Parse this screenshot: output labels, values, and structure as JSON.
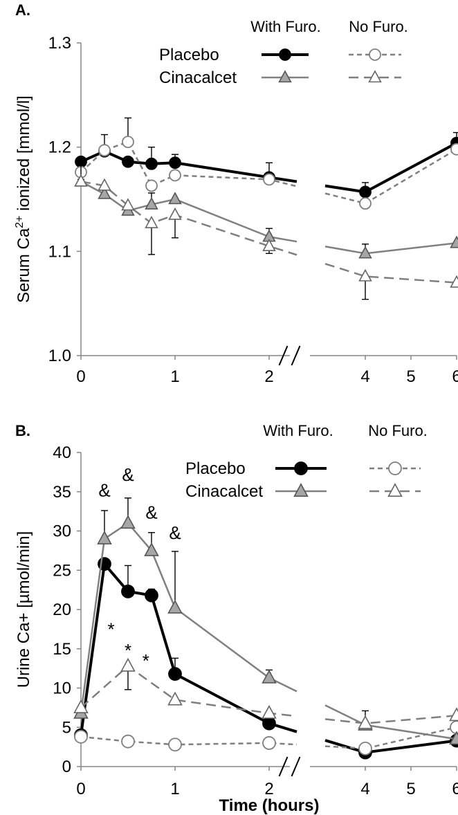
{
  "chart_data": [
    {
      "panel": "A.",
      "type": "line",
      "ylabel": "Serum Ca2+ ionized [mmol/l]",
      "ylabel_parts": {
        "pre": "Serum Ca",
        "sup": "2+",
        "post": " ionized [mmol/l]"
      },
      "ylim": [
        1.0,
        1.3
      ],
      "yticks": [
        "1.0",
        "1.1",
        "1.2",
        "1.3"
      ],
      "xticks": [
        "0",
        "1",
        "2",
        "4",
        "5",
        "6"
      ],
      "axis_break": true,
      "legend": {
        "header_with": "With Furo.",
        "header_without": "No Furo.",
        "rows": [
          "Placebo",
          "Cinacalcet"
        ]
      },
      "series": [
        {
          "name": "Placebo",
          "group": "With Furo.",
          "color": "#000000",
          "x": [
            0,
            0.25,
            0.5,
            0.75,
            1,
            2,
            4,
            6
          ],
          "y": [
            1.186,
            1.196,
            1.186,
            1.184,
            1.185,
            1.171,
            1.157,
            1.204
          ],
          "err": [
            0.017,
            0,
            0,
            0.016,
            0.008,
            0.014,
            0.009,
            0.01
          ]
        },
        {
          "name": "Placebo",
          "group": "No Furo.",
          "color": "#7f7f7f",
          "x": [
            0,
            0.25,
            0.5,
            0.75,
            1,
            2,
            4,
            6
          ],
          "y": [
            1.176,
            1.197,
            1.205,
            1.163,
            1.173,
            1.169,
            1.146,
            1.198
          ],
          "err": [
            0,
            0.015,
            0.023,
            0,
            0,
            0,
            0,
            0
          ]
        },
        {
          "name": "Cinacalcet",
          "group": "With Furo.",
          "color": "#808080",
          "x": [
            0,
            0.25,
            0.5,
            0.75,
            1,
            2,
            4,
            6
          ],
          "y": [
            1.167,
            1.155,
            1.139,
            1.145,
            1.15,
            1.114,
            1.098,
            1.108
          ],
          "err": [
            0.022,
            0,
            0,
            0.011,
            0,
            0.008,
            0.009,
            0
          ]
        },
        {
          "name": "Cinacalcet",
          "group": "No Furo.",
          "color": "#7f7f7f",
          "x": [
            0,
            0.25,
            0.5,
            0.75,
            1,
            2,
            4,
            6
          ],
          "y": [
            1.167,
            1.163,
            1.144,
            1.127,
            1.135,
            1.105,
            1.076,
            1.07
          ],
          "err": [
            0,
            0,
            0,
            0.03,
            0.022,
            0.007,
            0.022,
            0
          ]
        }
      ]
    },
    {
      "panel": "B.",
      "type": "line",
      "ylabel": "Urine Ca+ [µmol/min]",
      "xlabel": "Time (hours)",
      "ylim": [
        0,
        40
      ],
      "yticks": [
        "0",
        "5",
        "10",
        "15",
        "20",
        "25",
        "30",
        "35",
        "40"
      ],
      "xticks": [
        "0",
        "1",
        "2",
        "4",
        "5",
        "6"
      ],
      "axis_break": true,
      "legend": {
        "header_with": "With Furo.",
        "header_without": "No Furo.",
        "rows": [
          "Placebo",
          "Cinacalcet"
        ]
      },
      "series": [
        {
          "name": "Placebo",
          "group": "With Furo.",
          "color": "#000000",
          "x": [
            0,
            0.25,
            0.5,
            0.75,
            1,
            2,
            4,
            6
          ],
          "y": [
            4.0,
            25.8,
            22.3,
            21.8,
            11.8,
            5.5,
            1.8,
            3.3
          ],
          "err": [
            0,
            0,
            3.3,
            0.8,
            2.0,
            0.5,
            0,
            0
          ]
        },
        {
          "name": "Placebo",
          "group": "No Furo.",
          "color": "#808080",
          "x": [
            0,
            0.5,
            1,
            2,
            4,
            6
          ],
          "y": [
            3.8,
            3.2,
            2.8,
            3.0,
            2.3,
            5.0
          ],
          "err": [
            0,
            0,
            0,
            0,
            0,
            0
          ]
        },
        {
          "name": "Cinacalcet",
          "group": "With Furo.",
          "color": "#808080",
          "x": [
            0,
            0.25,
            0.5,
            0.75,
            1,
            2,
            4,
            6
          ],
          "y": [
            6.8,
            29.0,
            31.0,
            27.5,
            20.2,
            11.3,
            5.3,
            3.5
          ],
          "err": [
            0,
            3.6,
            3.2,
            2.3,
            7.2,
            1.0,
            1.8,
            0
          ]
        },
        {
          "name": "Cinacalcet",
          "group": "No Furo.",
          "color": "#7f7f7f",
          "x": [
            0,
            0.5,
            1,
            2,
            4,
            6
          ],
          "y": [
            7.5,
            12.8,
            8.5,
            6.8,
            5.5,
            6.5
          ],
          "err": [
            0,
            3.0,
            0,
            0,
            0,
            0
          ]
        }
      ],
      "annotations": [
        {
          "text": "&",
          "x": 0.25,
          "y": 35.2
        },
        {
          "text": "&",
          "x": 0.5,
          "y": 37.2
        },
        {
          "text": "&",
          "x": 0.75,
          "y": 32.4
        },
        {
          "text": "&",
          "x": 1.0,
          "y": 29.8
        },
        {
          "text": "*",
          "x": 0.32,
          "y": 17.5
        },
        {
          "text": "*",
          "x": 0.5,
          "y": 14.8
        },
        {
          "text": "*",
          "x": 0.69,
          "y": 13.5
        }
      ]
    }
  ]
}
